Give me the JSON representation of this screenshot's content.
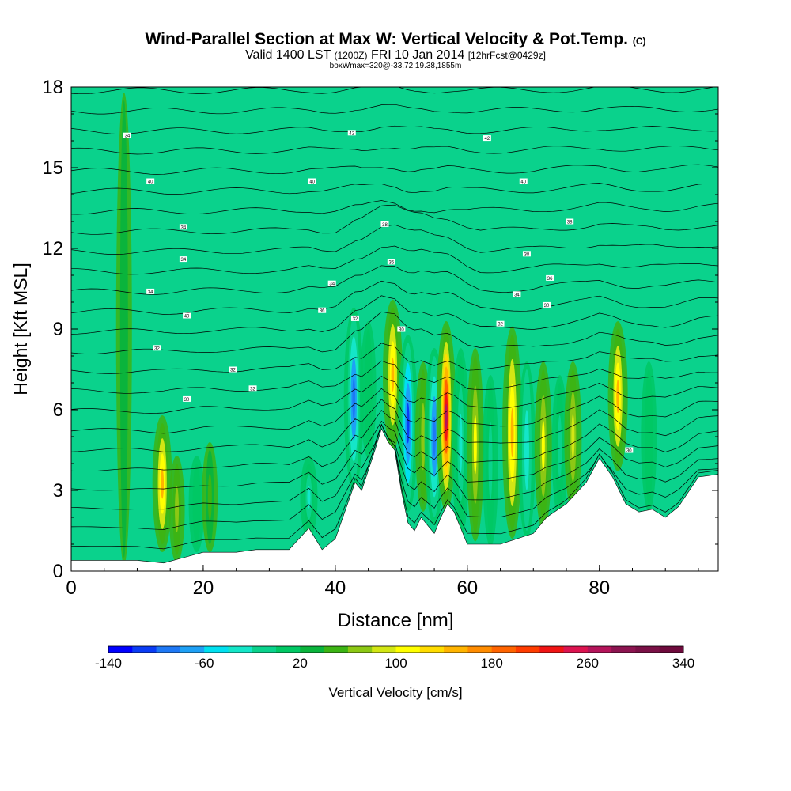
{
  "title": {
    "main": "Wind-Parallel Section at Max W: Vertical Velocity & Pot.Temp.",
    "copyright": "(C)",
    "valid_prefix": "Valid 1400 LST",
    "utc": "(1200Z)",
    "date": "FRI 10 Jan 2014",
    "forecast": "[12hrFcst@0429z]",
    "box": "boxWmax=320@-33.72,19.38,1855m"
  },
  "chart_data": {
    "type": "heatmap",
    "xlabel": "Distance [nm]",
    "ylabel": "Height [Kft MSL]",
    "xlim": [
      0,
      98
    ],
    "ylim": [
      0,
      18
    ],
    "xticks": [
      "0",
      "20",
      "40",
      "60",
      "80"
    ],
    "xtick_values": [
      0,
      20,
      40,
      60,
      80
    ],
    "yticks": [
      "0",
      "3",
      "6",
      "9",
      "12",
      "15",
      "18"
    ],
    "ytick_values": [
      0,
      3,
      6,
      9,
      12,
      15,
      18
    ],
    "colorbar": {
      "label": "Vertical Velocity [cm/s]",
      "min": -140,
      "max": 340,
      "step": 20,
      "tick_labels": [
        "-140",
        "-60",
        "20",
        "100",
        "180",
        "260",
        "340"
      ],
      "tick_values": [
        -140,
        -60,
        20,
        100,
        180,
        260,
        340
      ],
      "colors": [
        "#0000ff",
        "#0a3cf5",
        "#1e78f5",
        "#1ea0f5",
        "#00e0f0",
        "#14e6c8",
        "#0ad28c",
        "#00c864",
        "#0ab43c",
        "#3cb414",
        "#8cc814",
        "#d2e614",
        "#ffff00",
        "#ffdc00",
        "#ffb400",
        "#ff8c00",
        "#ff6400",
        "#ff3c00",
        "#f01414",
        "#dc1450",
        "#b4145a",
        "#8c1450",
        "#7a1046",
        "#6e0a3c"
      ]
    },
    "terrain": {
      "distance_nm": [
        0,
        10,
        14,
        17,
        20,
        25,
        28,
        33,
        36,
        38,
        40,
        42,
        43,
        44,
        46,
        47,
        48,
        49,
        50,
        51,
        52,
        53,
        55,
        56,
        57,
        58,
        60,
        65,
        70,
        72,
        75,
        78,
        80,
        82,
        84,
        86,
        88,
        90,
        92,
        95,
        98
      ],
      "height_kft": [
        0.4,
        0.4,
        0.3,
        0.5,
        0.7,
        0.7,
        0.8,
        0.8,
        1.6,
        0.8,
        1.2,
        2.6,
        3.3,
        3.0,
        4.5,
        5.3,
        4.8,
        4.5,
        3.0,
        1.8,
        1.5,
        2.0,
        1.4,
        2.0,
        2.5,
        2.2,
        1.0,
        1.0,
        1.4,
        2.0,
        2.5,
        3.3,
        4.2,
        3.5,
        2.5,
        2.2,
        2.3,
        2.0,
        2.4,
        3.5,
        3.6
      ]
    },
    "vertical_velocity_cells": [
      {
        "x": 13.8,
        "z_bottom": 1.0,
        "z_top": 5.5,
        "w": 140
      },
      {
        "x": 8.0,
        "z_bottom": 0.5,
        "z_top": 17.5,
        "w": 35
      },
      {
        "x": 16.0,
        "z_bottom": 0.6,
        "z_top": 4.0,
        "w": 60
      },
      {
        "x": 19.0,
        "z_bottom": 1.0,
        "z_top": 4.0,
        "w": 0
      },
      {
        "x": 21.0,
        "z_bottom": 1.0,
        "z_top": 4.5,
        "w": 40
      },
      {
        "x": 36.0,
        "z_bottom": 1.5,
        "z_top": 4.0,
        "w": -40
      },
      {
        "x": 42.8,
        "z_bottom": 3.3,
        "z_top": 9.5,
        "w": -100
      },
      {
        "x": 45.0,
        "z_bottom": 4.5,
        "z_top": 9.0,
        "w": 0
      },
      {
        "x": 48.7,
        "z_bottom": 4.8,
        "z_top": 9.8,
        "w": 140
      },
      {
        "x": 51.0,
        "z_bottom": 2.5,
        "z_top": 8.5,
        "w": -110
      },
      {
        "x": 53.3,
        "z_bottom": 2.5,
        "z_top": 7.5,
        "w": 60
      },
      {
        "x": 55.0,
        "z_bottom": 2.0,
        "z_top": 8.0,
        "w": -90
      },
      {
        "x": 56.8,
        "z_bottom": 2.5,
        "z_top": 9.0,
        "w": 260
      },
      {
        "x": 59.0,
        "z_bottom": 1.5,
        "z_top": 8.0,
        "w": -40
      },
      {
        "x": 61.2,
        "z_bottom": 1.4,
        "z_top": 8.0,
        "w": 100
      },
      {
        "x": 63.5,
        "z_bottom": 1.2,
        "z_top": 7.0,
        "w": -20
      },
      {
        "x": 66.8,
        "z_bottom": 1.5,
        "z_top": 8.8,
        "w": 150
      },
      {
        "x": 69.0,
        "z_bottom": 1.5,
        "z_top": 7.5,
        "w": -30
      },
      {
        "x": 71.5,
        "z_bottom": 1.8,
        "z_top": 7.5,
        "w": 100
      },
      {
        "x": 74.0,
        "z_bottom": 2.2,
        "z_top": 7.0,
        "w": -20
      },
      {
        "x": 76.0,
        "z_bottom": 2.5,
        "z_top": 7.5,
        "w": 80
      },
      {
        "x": 82.8,
        "z_bottom": 4.0,
        "z_top": 9.0,
        "w": 140
      },
      {
        "x": 87.5,
        "z_bottom": 2.5,
        "z_top": 7.5,
        "w": 0
      }
    ],
    "theta_contour_labels": [
      "34",
      "40",
      "42",
      "42",
      "40",
      "40",
      "34",
      "38",
      "36",
      "34",
      "36",
      "32",
      "32",
      "34",
      "30",
      "30",
      "30",
      "32",
      "30",
      "30",
      "30",
      "32",
      "32",
      "30"
    ],
    "theta_labels": [
      {
        "text": "34",
        "d": 8.5,
        "h": 16.2
      },
      {
        "text": "40",
        "d": 12,
        "h": 14.5
      },
      {
        "text": "34",
        "d": 17,
        "h": 12.8
      },
      {
        "text": "34",
        "d": 17,
        "h": 11.6
      },
      {
        "text": "34",
        "d": 12,
        "h": 10.4
      },
      {
        "text": "40",
        "d": 17.5,
        "h": 9.5
      },
      {
        "text": "32",
        "d": 13,
        "h": 8.3
      },
      {
        "text": "32",
        "d": 24.5,
        "h": 7.5
      },
      {
        "text": "32",
        "d": 27.5,
        "h": 6.8
      },
      {
        "text": "30",
        "d": 17.5,
        "h": 6.4
      },
      {
        "text": "40",
        "d": 36.5,
        "h": 14.5
      },
      {
        "text": "42",
        "d": 42.5,
        "h": 16.3
      },
      {
        "text": "38",
        "d": 47.5,
        "h": 12.9
      },
      {
        "text": "36",
        "d": 48.5,
        "h": 11.5
      },
      {
        "text": "34",
        "d": 39.5,
        "h": 10.7
      },
      {
        "text": "36",
        "d": 38,
        "h": 9.7
      },
      {
        "text": "32",
        "d": 43,
        "h": 9.4
      },
      {
        "text": "30",
        "d": 50,
        "h": 9.0
      },
      {
        "text": "42",
        "d": 63,
        "h": 16.1
      },
      {
        "text": "40",
        "d": 68.5,
        "h": 14.5
      },
      {
        "text": "38",
        "d": 75.5,
        "h": 13.0
      },
      {
        "text": "38",
        "d": 69,
        "h": 11.8
      },
      {
        "text": "36",
        "d": 72.5,
        "h": 10.9
      },
      {
        "text": "34",
        "d": 67.5,
        "h": 10.3
      },
      {
        "text": "30",
        "d": 72,
        "h": 9.9
      },
      {
        "text": "32",
        "d": 65,
        "h": 9.2
      },
      {
        "text": "30",
        "d": 84.5,
        "h": 4.5
      }
    ]
  }
}
